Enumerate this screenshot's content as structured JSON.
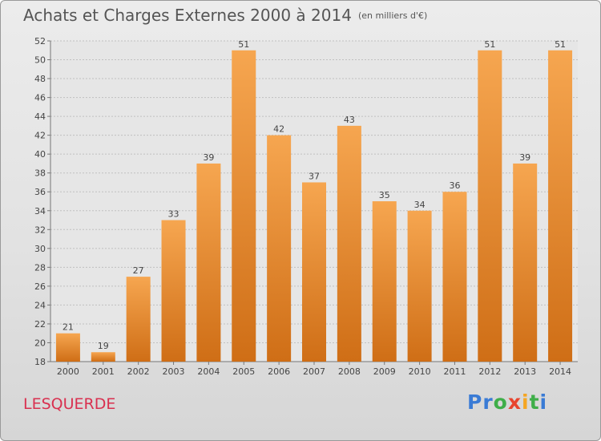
{
  "header": {
    "title": "Achats et Charges Externes 2000 à 2014",
    "subtitle": "(en milliers d'€)"
  },
  "footer": {
    "commune": "LESQUERDE",
    "logo_letters": [
      {
        "ch": "P",
        "color": "#3a7bd5"
      },
      {
        "ch": "r",
        "color": "#3a7bd5"
      },
      {
        "ch": "o",
        "color": "#3fae49"
      },
      {
        "ch": "x",
        "color": "#e8442e"
      },
      {
        "ch": "i",
        "color": "#f5a623"
      },
      {
        "ch": "t",
        "color": "#3fae49"
      },
      {
        "ch": "i",
        "color": "#3a7bd5"
      }
    ]
  },
  "colors": {
    "bar_top": "#f6a650",
    "bar_bottom": "#cf6e16",
    "grid": "#c0c0c0",
    "text": "#444444"
  },
  "chart_data": {
    "type": "bar",
    "title": "Achats et Charges Externes 2000 à 2014",
    "subtitle": "(en milliers d'€)",
    "categories": [
      "2000",
      "2001",
      "2002",
      "2003",
      "2004",
      "2005",
      "2006",
      "2007",
      "2008",
      "2009",
      "2010",
      "2011",
      "2012",
      "2013",
      "2014"
    ],
    "values": [
      21,
      19,
      27,
      33,
      39,
      51,
      42,
      37,
      43,
      35,
      34,
      36,
      51,
      39,
      51
    ],
    "ylim": [
      18,
      52
    ],
    "yticks": [
      18,
      20,
      22,
      24,
      26,
      28,
      30,
      32,
      34,
      36,
      38,
      40,
      42,
      44,
      46,
      48,
      50,
      52
    ],
    "grid": true,
    "legend": "none"
  }
}
